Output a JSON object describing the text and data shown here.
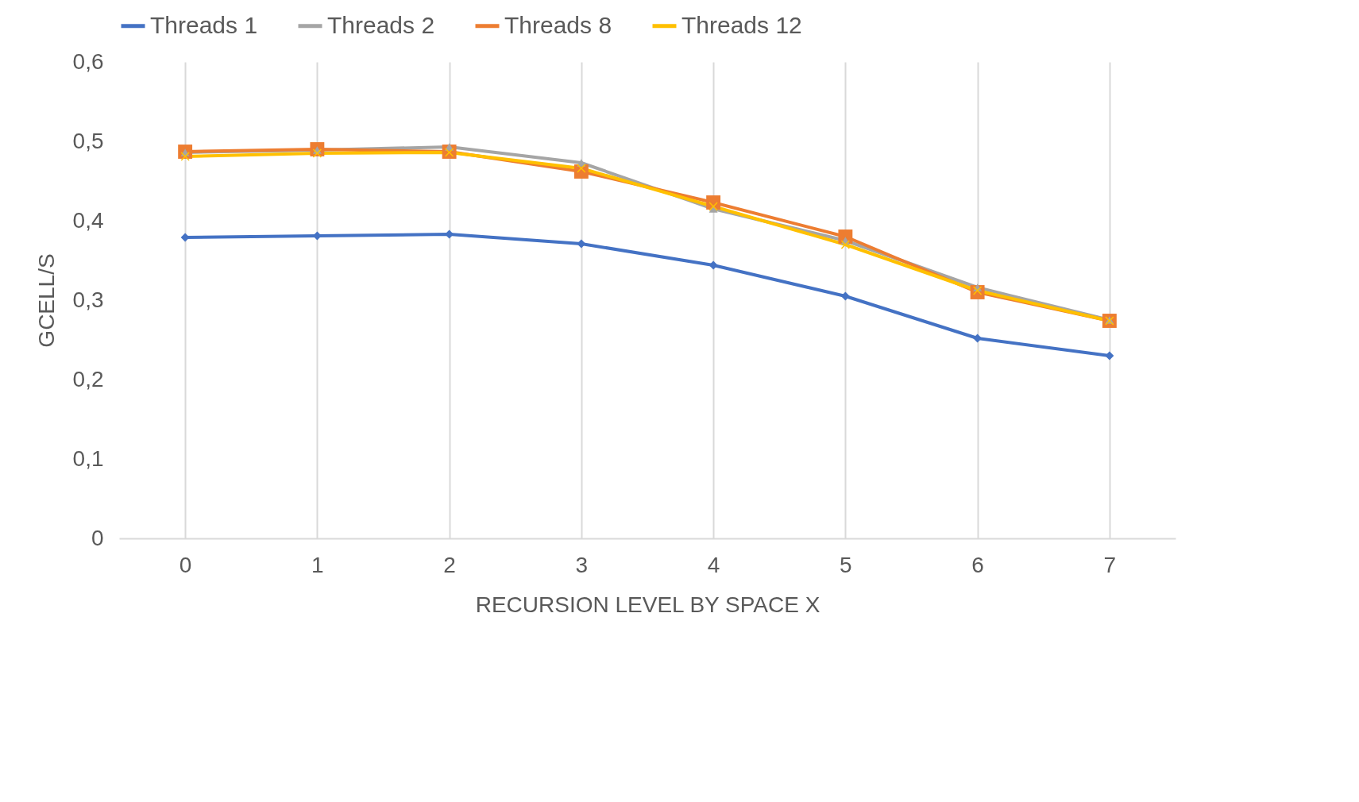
{
  "chart_data": {
    "type": "line",
    "xlabel": "RECURSION LEVEL BY SPACE X",
    "ylabel": "GCELL/S",
    "categories": [
      "0",
      "1",
      "2",
      "3",
      "4",
      "5",
      "6",
      "7"
    ],
    "ylim": [
      0,
      0.6
    ],
    "yticks": [
      0,
      {
        "value": 0.1,
        "label": "0,1"
      },
      {
        "value": 0.2,
        "label": "0,2"
      },
      {
        "value": 0.3,
        "label": "0,3"
      },
      {
        "value": 0.4,
        "label": "0,4"
      },
      {
        "value": 0.5,
        "label": "0,5"
      },
      {
        "value": 0.6,
        "label": "0,6"
      }
    ],
    "grid": "x",
    "legend": "top",
    "line_style": "solid",
    "series": [
      {
        "name": "Threads 1",
        "color": "#4472c4",
        "marker": "diamond",
        "values": [
          0.379,
          0.381,
          0.383,
          0.371,
          0.344,
          0.305,
          0.252,
          0.23
        ]
      },
      {
        "name": "Threads 2",
        "color": "#a5a5a5",
        "marker": "triangle",
        "values": [
          0.486,
          0.489,
          0.493,
          0.473,
          0.415,
          0.375,
          0.316,
          0.275
        ]
      },
      {
        "name": "Threads 8",
        "color": "#ed7d31",
        "marker": "square",
        "values": [
          0.487,
          0.49,
          0.487,
          0.462,
          0.423,
          0.38,
          0.31,
          0.274
        ]
      },
      {
        "name": "Threads 12",
        "color": "#ffc000",
        "marker": "cross",
        "values": [
          0.481,
          0.485,
          0.486,
          0.466,
          0.418,
          0.37,
          0.312,
          0.274
        ]
      }
    ]
  }
}
